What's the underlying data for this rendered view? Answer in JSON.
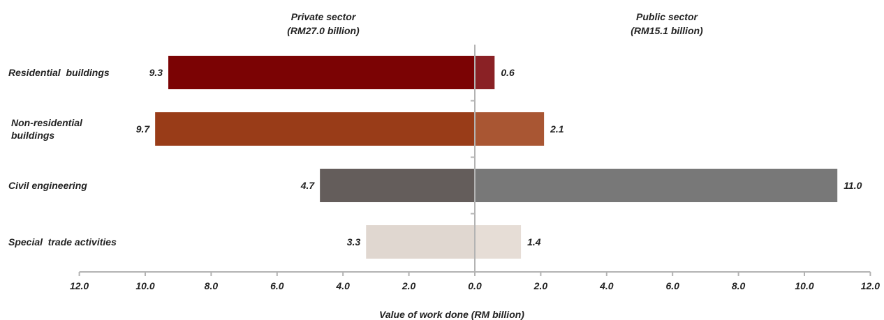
{
  "chart_data": {
    "type": "bar",
    "orientation": "horizontal-diverging",
    "xlabel": "Value of work done (RM billion)",
    "xlim": [
      -12,
      12
    ],
    "tick_labels": [
      "12.0",
      "10.0",
      "8.0",
      "6.0",
      "4.0",
      "2.0",
      "0.0",
      "2.0",
      "4.0",
      "6.0",
      "8.0",
      "10.0",
      "12.0"
    ],
    "left_sector": {
      "title": "Private sector",
      "subtitle": "(RM27.0 billion)"
    },
    "right_sector": {
      "title": "Public sector",
      "subtitle": "(RM15.1 billion)"
    },
    "categories": [
      {
        "label_lines": [
          "Residential  buildings"
        ],
        "private": 9.3,
        "public": 0.6,
        "private_label": "9.3",
        "public_label": "0.6",
        "private_color": "#7b0304",
        "public_color": "#8a2125"
      },
      {
        "label_lines": [
          "Non-residential",
          "buildings"
        ],
        "private": 9.7,
        "public": 2.1,
        "private_label": "9.7",
        "public_label": "2.1",
        "private_color": "#993c18",
        "public_color": "#a95633"
      },
      {
        "label_lines": [
          "Civil engineering"
        ],
        "private": 4.7,
        "public": 11.0,
        "private_label": "4.7",
        "public_label": "11.0",
        "private_color": "#645d5b",
        "public_color": "#787878"
      },
      {
        "label_lines": [
          "Special  trade activities"
        ],
        "private": 3.3,
        "public": 1.4,
        "private_label": "3.3",
        "public_label": "1.4",
        "private_color": "#e0d7d0",
        "public_color": "#e6ddd6"
      }
    ],
    "grid": false,
    "legend": "none"
  }
}
